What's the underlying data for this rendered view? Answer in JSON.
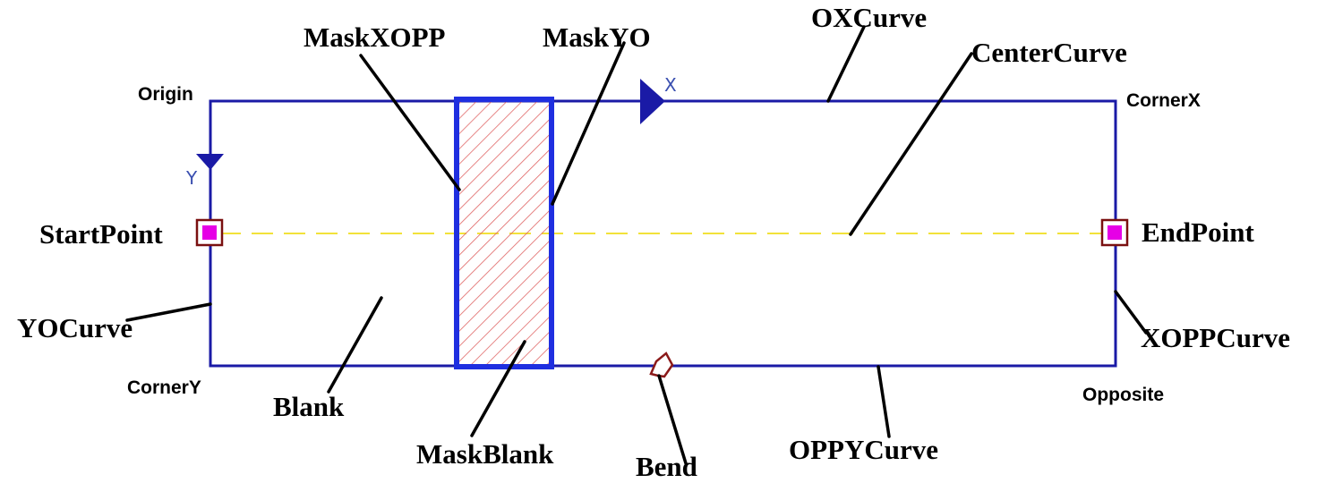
{
  "labels": {
    "origin": "Origin",
    "corner_x": "CornerX",
    "corner_y": "CornerY",
    "opposite": "Opposite",
    "start_point": "StartPoint",
    "end_point": "EndPoint",
    "yo_curve": "YOCurve",
    "xopp_curve": "XOPPCurve",
    "ox_curve": "OXCurve",
    "oppy_curve": "OPPYCurve",
    "center_curve": "CenterCurve",
    "mask_xopp": "MaskXOPP",
    "mask_yo": "MaskYO",
    "mask_blank": "MaskBlank",
    "blank": "Blank",
    "bend": "Bend"
  },
  "axes": {
    "x": "X",
    "y": "Y"
  },
  "colors": {
    "outline": "#1a1aa6",
    "mask_border": "#1f2fe0",
    "hatch": "#e06666",
    "center_line": "#f2e23a",
    "point_fill": "#e600e6",
    "point_border": "#7a1010",
    "bend_marker": "#8b1a1a",
    "leader": "#000000"
  }
}
